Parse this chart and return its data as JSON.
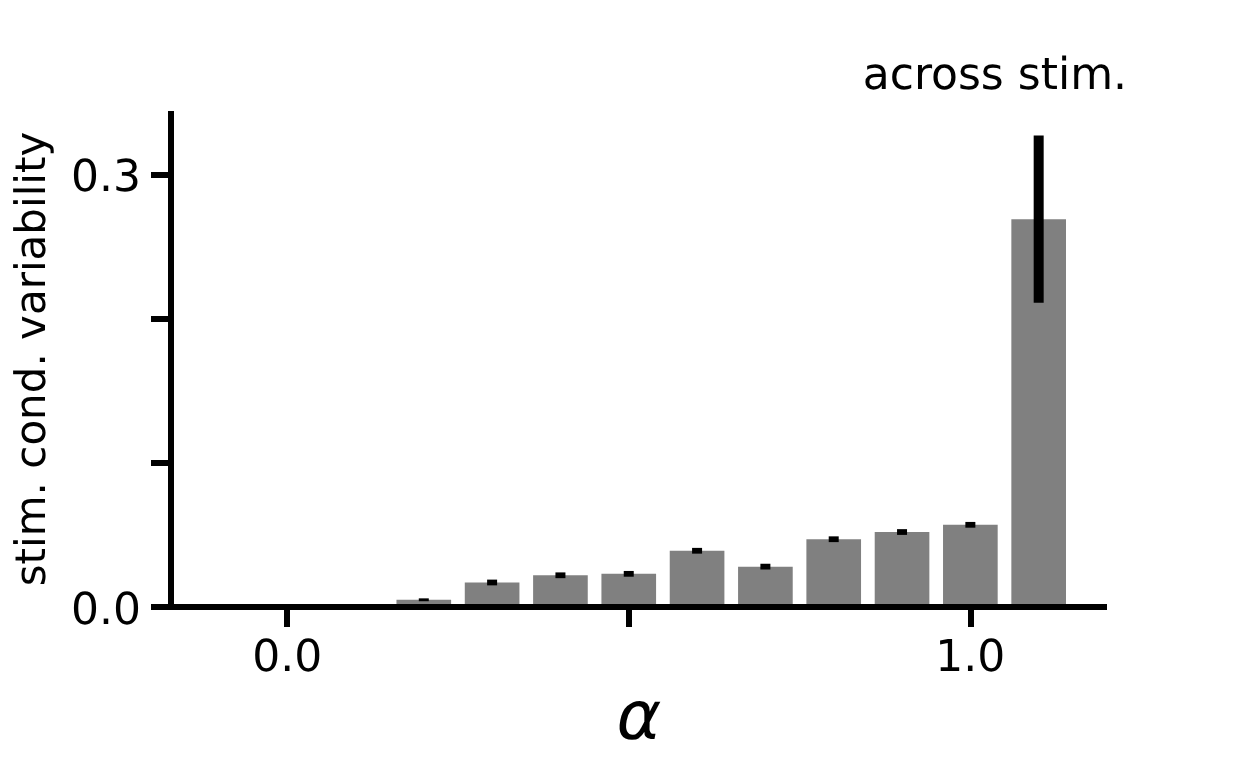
{
  "chart_data": {
    "type": "bar",
    "xlabel": "α",
    "ylabel": "stim. cond. variability",
    "x": [
      0.0,
      0.1,
      0.2,
      0.3,
      0.4,
      0.5,
      0.6,
      0.7,
      0.8,
      0.9,
      1.0,
      1.1
    ],
    "values": [
      0,
      0,
      0.005,
      0.017,
      0.022,
      0.023,
      0.039,
      0.028,
      0.047,
      0.052,
      0.057,
      0.269
    ],
    "errors": [
      null,
      null,
      0.001,
      0.002,
      0.002,
      0.002,
      0.002,
      0.002,
      0.002,
      0.002,
      0.002,
      [
        0.211,
        0.327
      ]
    ],
    "color": "#808080",
    "xlim": [
      -0.17,
      1.2
    ],
    "ylim": [
      0,
      0.344
    ],
    "xticks": [
      {
        "value": 0.0,
        "label": "0.0"
      },
      {
        "value": 0.5,
        "label": null
      },
      {
        "value": 1.0,
        "label": "1.0"
      }
    ],
    "yticks": [
      {
        "value": 0.0,
        "label": "0.0"
      },
      {
        "value": 0.1,
        "label": null
      },
      {
        "value": 0.2,
        "label": null
      },
      {
        "value": 0.3,
        "label": "0.3"
      }
    ],
    "annotations": [
      "across stim."
    ],
    "grid": false
  }
}
